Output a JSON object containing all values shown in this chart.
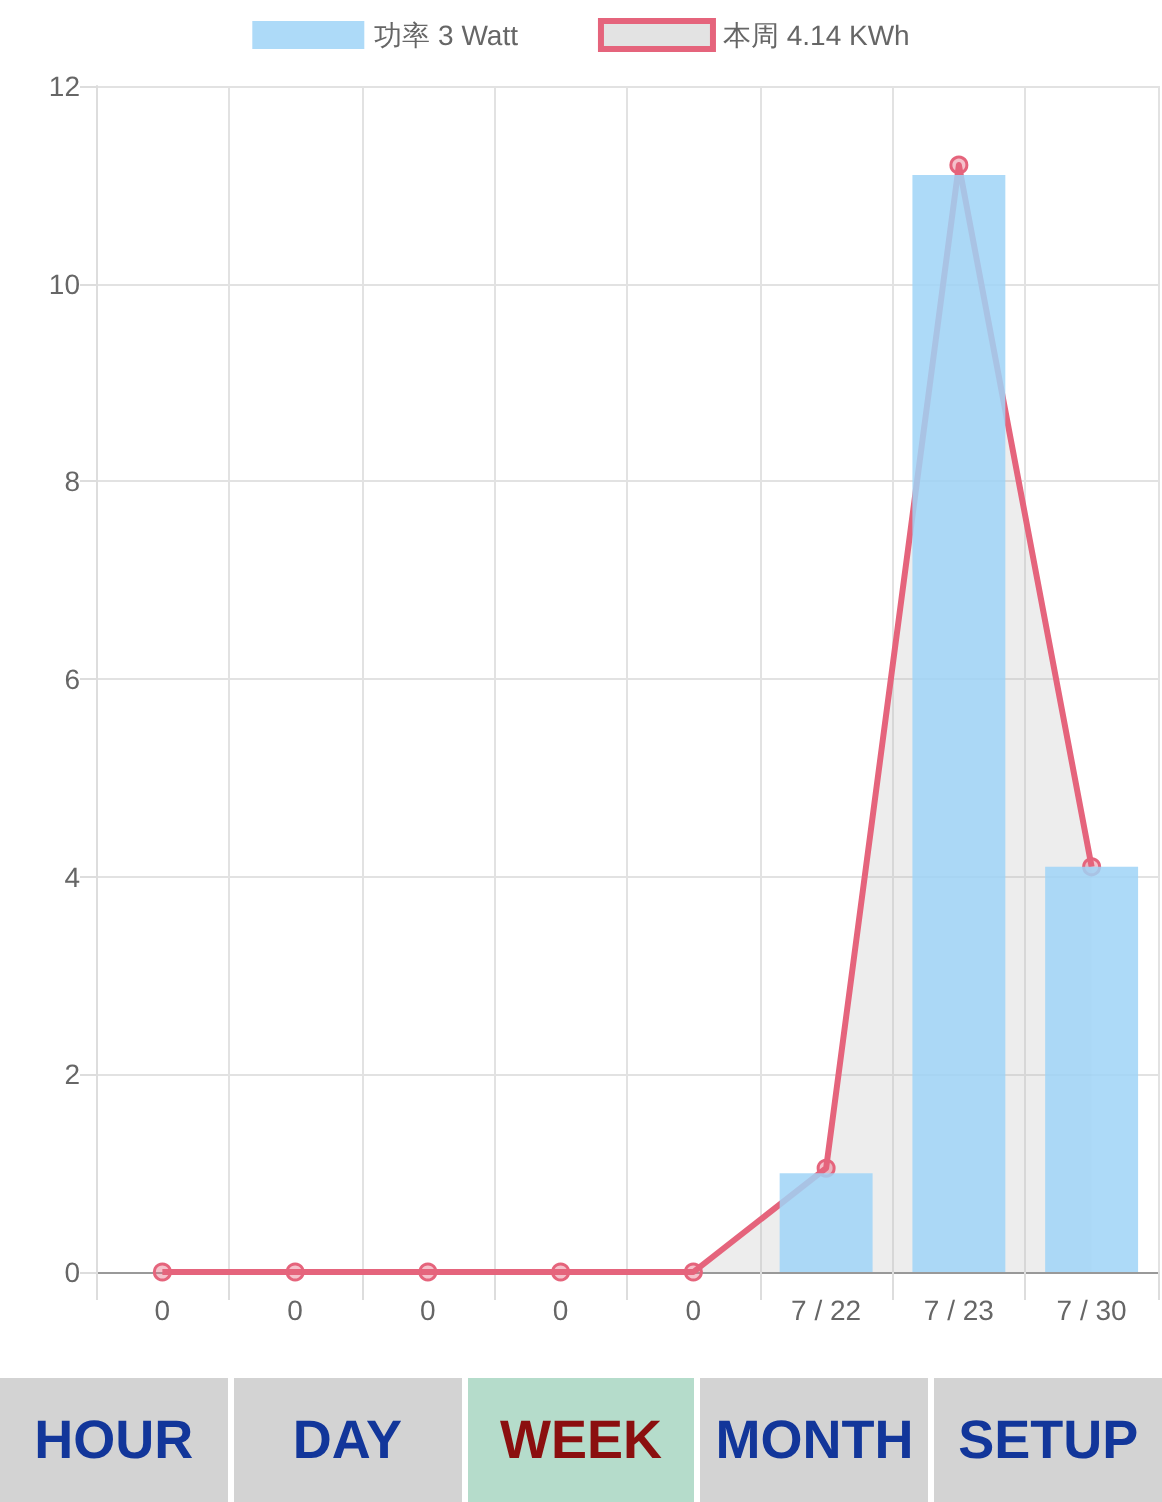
{
  "chart_data": {
    "type": "bar",
    "categories": [
      "0",
      "0",
      "0",
      "0",
      "0",
      "7 / 22",
      "7 / 23",
      "7 / 30"
    ],
    "series": [
      {
        "name": "功率 3 Watt",
        "color": "#9fd3f7",
        "values": [
          0,
          0,
          0,
          0,
          0,
          1.0,
          11.1,
          4.1
        ]
      },
      {
        "name": "本周 4.14 KWh",
        "type": "area",
        "color": "#e5647c",
        "values": [
          0,
          0,
          0,
          0,
          0,
          1.05,
          11.2,
          4.1
        ]
      }
    ],
    "ylim": [
      0,
      12
    ],
    "yticks": [
      0,
      2,
      4,
      6,
      8,
      10,
      12
    ],
    "grid": true,
    "legend": "top",
    "marker": "circle",
    "annotations": [
      "HOUR",
      "DAY",
      "WEEK",
      "MONTH",
      "SETUP"
    ]
  }
}
